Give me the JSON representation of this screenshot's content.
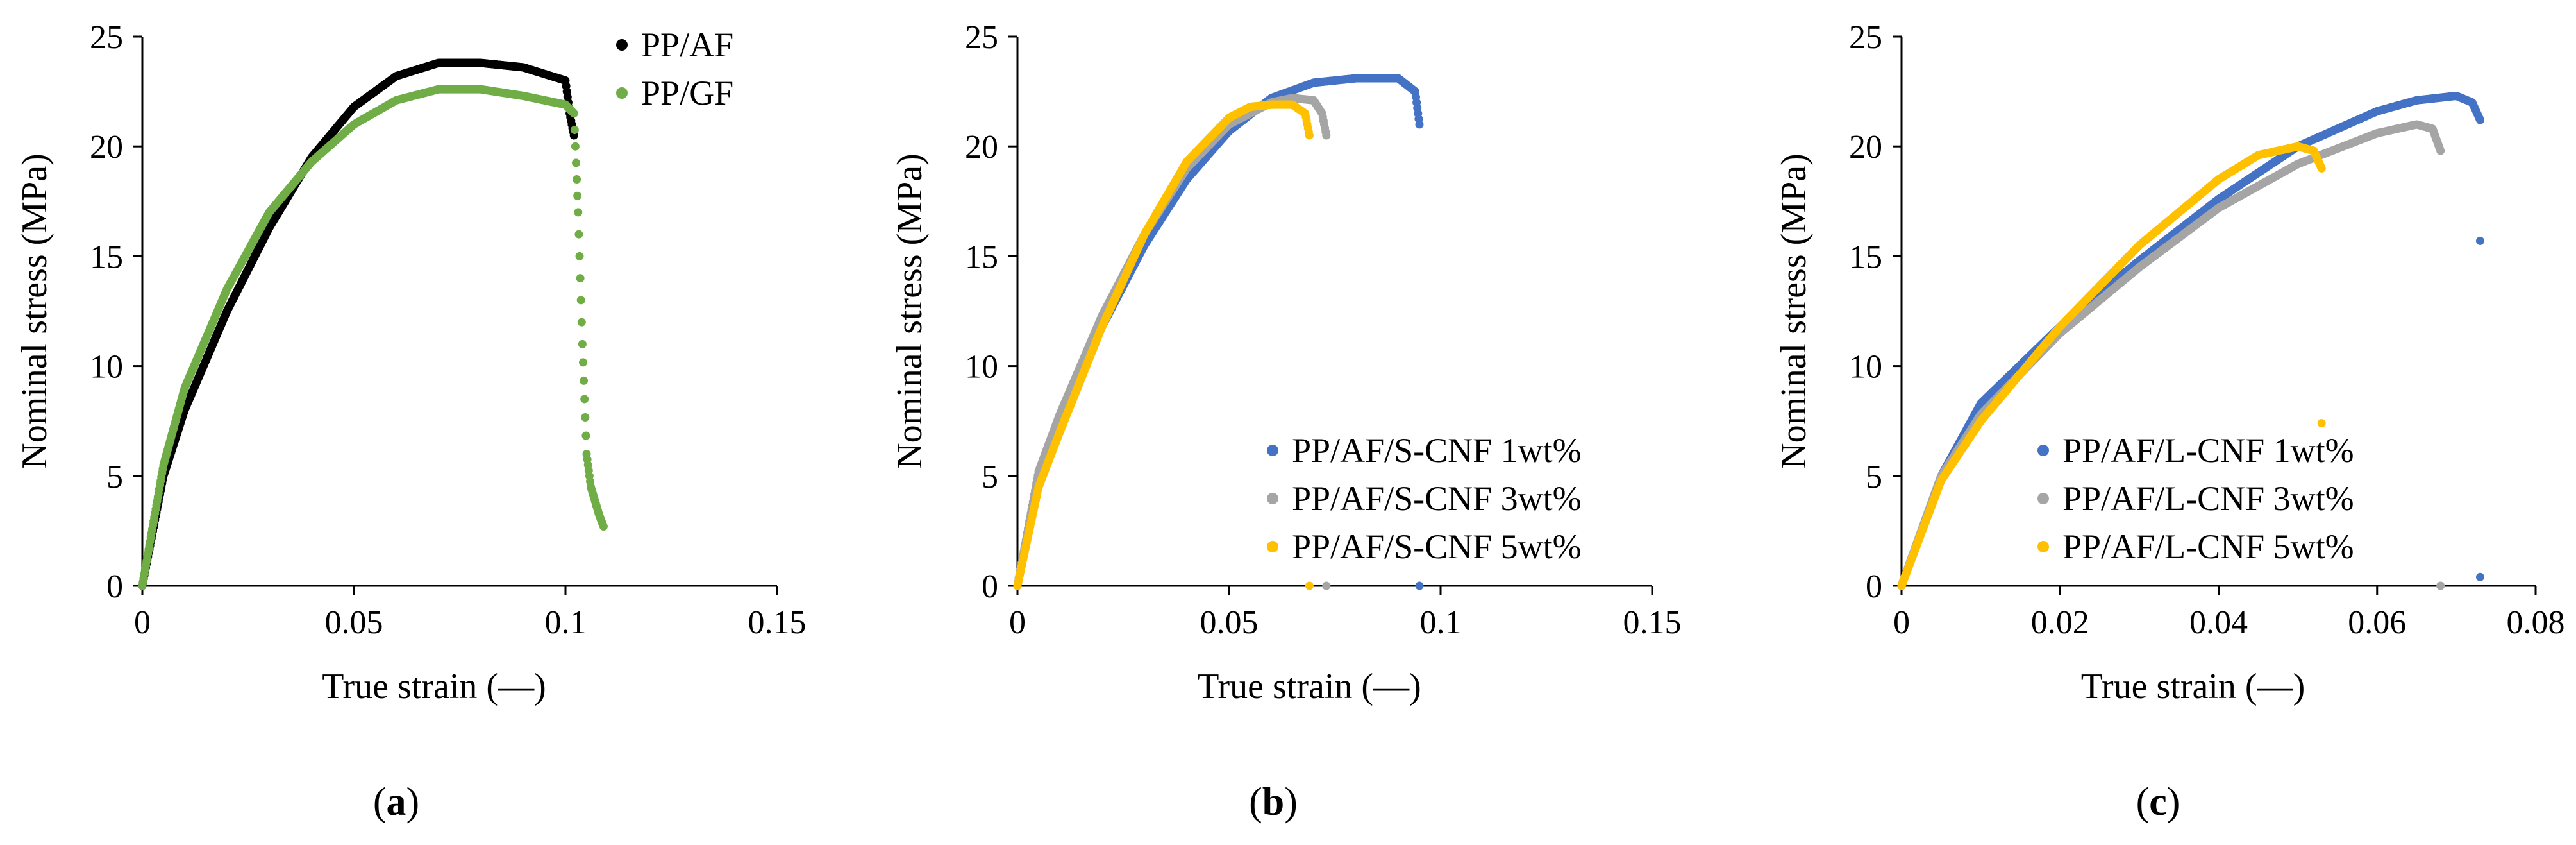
{
  "chart_data": [
    {
      "type": "scatter",
      "panel_label": "(a)",
      "caption_open": "(",
      "caption_letter": "a",
      "caption_close": ")",
      "xlabel": "True strain (—)",
      "ylabel": "Nominal stress (MPa)",
      "xlim": [
        0,
        0.15
      ],
      "ylim": [
        0,
        25
      ],
      "xticks": [
        0,
        0.05,
        0.1,
        0.15
      ],
      "xtick_labels": [
        "0",
        "0.05",
        "0.1",
        "0.15"
      ],
      "yticks": [
        0,
        5,
        10,
        15,
        20,
        25
      ],
      "ytick_labels": [
        "0",
        "5",
        "10",
        "15",
        "20",
        "25"
      ],
      "legend_position": "top-right",
      "series": [
        {
          "name": "PP/AF",
          "color": "#000000",
          "x": [
            0,
            0.005,
            0.01,
            0.02,
            0.03,
            0.04,
            0.05,
            0.06,
            0.07,
            0.08,
            0.09,
            0.1,
            0.101,
            0.102
          ],
          "y": [
            0,
            5.0,
            8.0,
            12.5,
            16.3,
            19.5,
            21.8,
            23.2,
            23.8,
            23.8,
            23.6,
            23.0,
            21.5,
            20.5
          ]
        },
        {
          "name": "PP/GF",
          "color": "#70ad47",
          "x": [
            0,
            0.005,
            0.01,
            0.02,
            0.03,
            0.04,
            0.05,
            0.06,
            0.07,
            0.08,
            0.09,
            0.1,
            0.102,
            0.103,
            0.104,
            0.105,
            0.106,
            0.108,
            0.109
          ],
          "y": [
            0,
            5.5,
            9.0,
            13.5,
            17.0,
            19.3,
            21.0,
            22.1,
            22.6,
            22.6,
            22.3,
            21.9,
            21.5,
            17.0,
            11.0,
            6.0,
            4.5,
            3.2,
            2.7
          ]
        }
      ]
    },
    {
      "type": "scatter",
      "panel_label": "(b)",
      "caption_open": "(",
      "caption_letter": "b",
      "caption_close": ")",
      "xlabel": "True strain (—)",
      "ylabel": "Nominal stress (MPa)",
      "xlim": [
        0,
        0.15
      ],
      "ylim": [
        0,
        25
      ],
      "xticks": [
        0,
        0.05,
        0.1,
        0.15
      ],
      "xtick_labels": [
        "0",
        "0.05",
        "0.1",
        "0.15"
      ],
      "yticks": [
        0,
        5,
        10,
        15,
        20,
        25
      ],
      "ytick_labels": [
        "0",
        "5",
        "10",
        "15",
        "20",
        "25"
      ],
      "legend_position": "bottom-right",
      "series": [
        {
          "name": "PP/AF/S-CNF 1wt%",
          "color": "#4472c4",
          "x": [
            0,
            0.005,
            0.01,
            0.02,
            0.03,
            0.04,
            0.05,
            0.06,
            0.07,
            0.08,
            0.09,
            0.094,
            0.095
          ],
          "y": [
            0,
            5.0,
            7.5,
            11.8,
            15.5,
            18.5,
            20.7,
            22.2,
            22.9,
            23.1,
            23.1,
            22.5,
            21.0
          ],
          "outliers": [
            [
              0.095,
              0
            ]
          ]
        },
        {
          "name": "PP/AF/S-CNF 3wt%",
          "color": "#a5a5a5",
          "x": [
            0,
            0.005,
            0.01,
            0.02,
            0.03,
            0.04,
            0.05,
            0.06,
            0.065,
            0.07,
            0.072,
            0.073
          ],
          "y": [
            0,
            5.2,
            7.8,
            12.3,
            16.0,
            19.0,
            21.0,
            22.0,
            22.2,
            22.1,
            21.5,
            20.5
          ],
          "outliers": [
            [
              0.073,
              0
            ]
          ]
        },
        {
          "name": "PP/AF/S-CNF 5wt%",
          "color": "#ffc000",
          "x": [
            0,
            0.005,
            0.01,
            0.02,
            0.03,
            0.04,
            0.05,
            0.055,
            0.06,
            0.065,
            0.068,
            0.069
          ],
          "y": [
            0,
            4.5,
            7.0,
            11.8,
            16.0,
            19.3,
            21.3,
            21.8,
            21.9,
            21.9,
            21.5,
            20.5
          ],
          "outliers": [
            [
              0.069,
              0
            ]
          ]
        }
      ]
    },
    {
      "type": "scatter",
      "panel_label": "(c)",
      "caption_open": "(",
      "caption_letter": "c",
      "caption_close": ")",
      "xlabel": "True strain (—)",
      "ylabel": "Nominal stress (MPa)",
      "xlim": [
        0,
        0.08
      ],
      "ylim": [
        0,
        25
      ],
      "xticks": [
        0,
        0.02,
        0.04,
        0.06,
        0.08
      ],
      "xtick_labels": [
        "0",
        "0.02",
        "0.04",
        "0.06",
        "0.08"
      ],
      "yticks": [
        0,
        5,
        10,
        15,
        20,
        25
      ],
      "ytick_labels": [
        "0",
        "5",
        "10",
        "15",
        "20",
        "25"
      ],
      "legend_position": "bottom-right",
      "series": [
        {
          "name": "PP/AF/L-CNF 1wt%",
          "color": "#4472c4",
          "x": [
            0,
            0.005,
            0.01,
            0.02,
            0.03,
            0.04,
            0.05,
            0.06,
            0.065,
            0.07,
            0.072,
            0.073
          ],
          "y": [
            0,
            5.0,
            8.3,
            11.8,
            14.8,
            17.6,
            20.0,
            21.6,
            22.1,
            22.3,
            22.0,
            21.2
          ],
          "outliers": [
            [
              0.073,
              15.7
            ],
            [
              0.073,
              0.4
            ]
          ]
        },
        {
          "name": "PP/AF/L-CNF 3wt%",
          "color": "#a5a5a5",
          "x": [
            0,
            0.005,
            0.01,
            0.02,
            0.03,
            0.04,
            0.05,
            0.06,
            0.065,
            0.067,
            0.068
          ],
          "y": [
            0,
            5.0,
            7.8,
            11.5,
            14.5,
            17.2,
            19.2,
            20.6,
            21.0,
            20.8,
            19.8
          ],
          "outliers": [
            [
              0.068,
              0
            ]
          ]
        },
        {
          "name": "PP/AF/L-CNF 5wt%",
          "color": "#ffc000",
          "x": [
            0,
            0.005,
            0.01,
            0.02,
            0.03,
            0.04,
            0.045,
            0.05,
            0.052,
            0.053
          ],
          "y": [
            0,
            4.8,
            7.5,
            11.8,
            15.5,
            18.5,
            19.6,
            20.0,
            19.8,
            19.0
          ],
          "outliers": [
            [
              0.053,
              7.4
            ]
          ]
        }
      ]
    }
  ]
}
